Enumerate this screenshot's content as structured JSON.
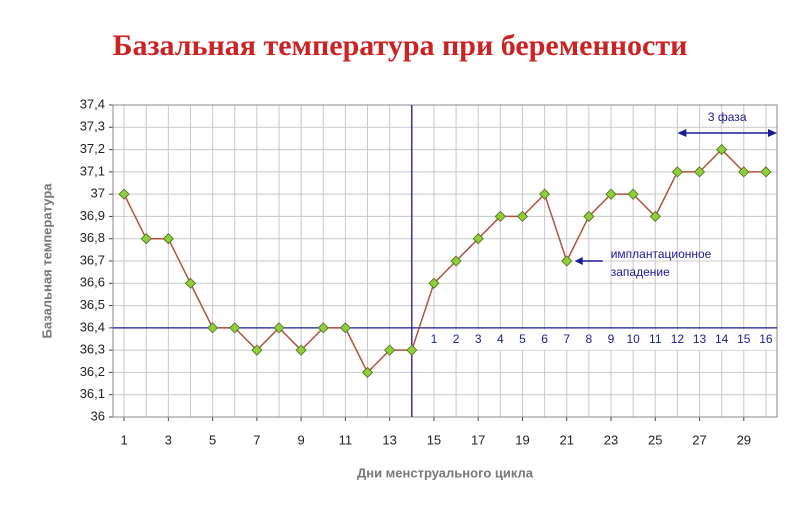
{
  "chart_data": {
    "type": "line",
    "title": "Базальная температура при беременности",
    "y_label": "Базальная температура",
    "x_label": "Дни менструального цикла",
    "x": [
      1,
      2,
      3,
      4,
      5,
      6,
      7,
      8,
      9,
      10,
      11,
      12,
      13,
      14,
      15,
      16,
      17,
      18,
      19,
      20,
      21,
      22,
      23,
      24,
      25,
      26,
      27,
      28,
      29,
      30
    ],
    "series": [
      {
        "name": "Базальная температура",
        "color": "#b5523b",
        "marker_color": "#8fce3a",
        "values": [
          37.0,
          36.8,
          36.8,
          36.6,
          36.4,
          36.4,
          36.3,
          36.4,
          36.3,
          36.4,
          36.4,
          36.2,
          36.3,
          36.3,
          36.6,
          36.7,
          36.8,
          36.9,
          36.9,
          37.0,
          36.7,
          36.9,
          37.0,
          37.0,
          36.9,
          37.1,
          37.1,
          37.2,
          37.1,
          37.1
        ]
      }
    ],
    "xlim": [
      0.5,
      30.5
    ],
    "xticks": [
      1,
      3,
      5,
      7,
      9,
      11,
      13,
      15,
      17,
      19,
      21,
      23,
      25,
      27,
      29
    ],
    "ylim": [
      36,
      37.4
    ],
    "yticks": [
      36,
      {
        "value": 36.1,
        "label": "36,1"
      },
      {
        "value": 36.2,
        "label": "36,2"
      },
      {
        "value": 36.3,
        "label": "36,3"
      },
      {
        "value": 36.4,
        "label": "36,4"
      },
      {
        "value": 36.5,
        "label": "36,5"
      },
      {
        "value": 36.6,
        "label": "36,6"
      },
      {
        "value": 36.7,
        "label": "36,7"
      },
      {
        "value": 36.8,
        "label": "36,8"
      },
      {
        "value": 36.9,
        "label": "36,9"
      },
      37,
      {
        "value": 37.1,
        "label": "37,1"
      },
      {
        "value": 37.2,
        "label": "37,2"
      },
      {
        "value": 37.3,
        "label": "37,3"
      },
      {
        "value": 37.4,
        "label": "37,4"
      }
    ],
    "grid": true,
    "cover_line": 36.4,
    "ovulation_day": 14,
    "phase_day_labels": [
      1,
      2,
      3,
      4,
      5,
      6,
      7,
      8,
      9,
      10,
      11,
      12,
      13,
      14,
      15,
      16
    ],
    "implantation_label": [
      "имплантационное",
      "западение"
    ],
    "implantation_day": 21,
    "phase3_label": "3 фаза",
    "phase3_start": 26,
    "marker_line_color": "#1a1a99"
  }
}
